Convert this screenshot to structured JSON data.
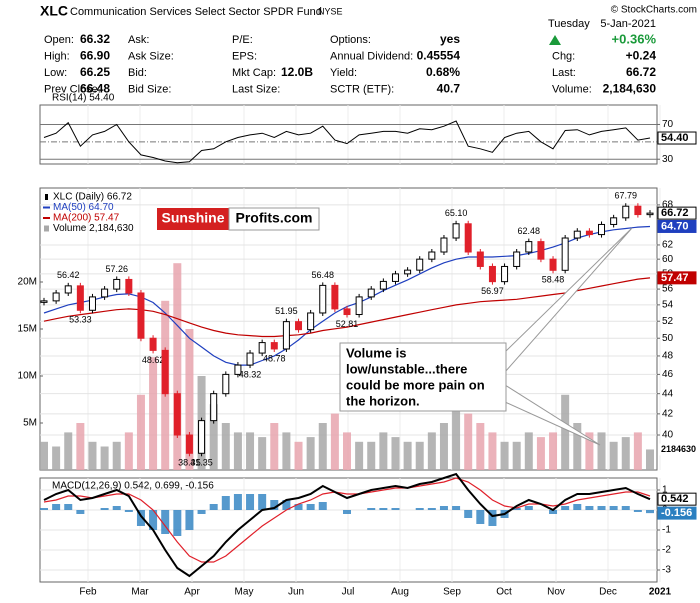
{
  "header": {
    "symbol": "XLC",
    "name": "Communication Services Select Sector SPDR Fund",
    "exchange": "NYSE",
    "credit": "© StockCharts.com",
    "day": "Tuesday",
    "date": "5-Jan-2021",
    "change_pct": "+0.36%",
    "rows": [
      [
        {
          "label": "Open:",
          "value": "66.32"
        },
        {
          "label": "Ask:"
        },
        {
          "label": "P/E:"
        },
        {
          "label": "Options:",
          "value": "yes"
        }
      ],
      [
        {
          "label": "High:",
          "value": "66.90"
        },
        {
          "label": "Ask Size:"
        },
        {
          "label": "EPS:"
        },
        {
          "label": "Annual Dividend:",
          "value": "0.45554"
        }
      ],
      [
        {
          "label": "Low:",
          "value": "66.25"
        },
        {
          "label": "Bid:"
        },
        {
          "label": "Mkt Cap:",
          "value": "12.0B"
        },
        {
          "label": "Yield:",
          "value": "0.68%"
        }
      ],
      [
        {
          "label": "Prev Close:",
          "value": "66.48"
        },
        {
          "label": "Bid Size:"
        },
        {
          "label": "Last Size:"
        },
        {
          "label": "SCTR (ETF):",
          "value": "40.7"
        }
      ]
    ],
    "side": [
      {
        "label": "Chg:",
        "value": "+0.24"
      },
      {
        "label": "Last:",
        "value": "66.72"
      },
      {
        "label": "Volume:",
        "value": "2,184,630"
      }
    ]
  },
  "watermark": [
    "Sunshine",
    "Profits.com"
  ],
  "annotation": [
    "Volume is",
    "low/unstable...there",
    "could be more pain on",
    "the horizon."
  ],
  "chart_data": [
    {
      "type": "line",
      "title": "RSI(14) 54.40",
      "color": "#000000",
      "values": [
        55,
        60,
        72,
        45,
        58,
        62,
        70,
        50,
        35,
        32,
        28,
        26,
        27,
        40,
        42,
        50,
        55,
        58,
        60,
        55,
        62,
        58,
        60,
        68,
        52,
        48,
        58,
        60,
        62,
        62,
        60,
        65,
        64,
        68,
        74,
        45,
        42,
        38,
        55,
        60,
        62,
        50,
        42,
        63,
        64,
        58,
        62,
        64,
        66,
        52,
        54.4
      ],
      "ylim": [
        24.5,
        92.4
      ],
      "yticks": [
        30,
        50,
        70
      ],
      "tags": [
        {
          "value": 54.4,
          "label": "54.40",
          "color": "#000000"
        }
      ]
    },
    {
      "type": "candlestick",
      "log_scale": true,
      "grid": true,
      "up_color": "#000000",
      "down_color": "#e0202a",
      "volume_up_color": "#a8a8a8",
      "volume_down_color": "#e8a4ae",
      "series": [
        {
          "name": "XLC (Daily) 66.72",
          "color": "#000000",
          "values": [
            54.5,
            55.5,
            56.42,
            53.33,
            55.0,
            56.0,
            57.26,
            55.5,
            50.0,
            48.62,
            44.0,
            40.0,
            38.35,
            41.35,
            44.0,
            46.0,
            47.0,
            48.32,
            49.5,
            48.78,
            51.95,
            51.0,
            53.0,
            56.48,
            53.5,
            52.81,
            55.0,
            56.0,
            57.0,
            58.0,
            58.5,
            60.0,
            61.0,
            63.0,
            65.1,
            61.0,
            59.0,
            56.97,
            59.0,
            61.0,
            62.48,
            60.0,
            58.48,
            63.0,
            64.0,
            63.5,
            65.0,
            66.0,
            67.79,
            66.5,
            66.72
          ],
          "value_labels": [
            null,
            null,
            "56.42",
            "53.33",
            null,
            null,
            "57.26",
            null,
            null,
            "48.62",
            null,
            null,
            "38.35",
            "41.35",
            null,
            null,
            null,
            "48.32",
            null,
            "48.78",
            "51.95",
            null,
            null,
            "56.48",
            null,
            "52.81",
            null,
            null,
            null,
            null,
            null,
            null,
            null,
            null,
            "65.10",
            null,
            null,
            "56.97",
            null,
            null,
            "62.48",
            null,
            "58.48",
            null,
            null,
            null,
            null,
            null,
            "67.79",
            null,
            null
          ]
        },
        {
          "name": "MA(50) 64.70",
          "color": "#1f3fbf",
          "values": [
            53,
            53.5,
            54,
            54.3,
            54.6,
            55,
            55.3,
            55.4,
            55,
            54.3,
            53,
            51.5,
            50,
            49,
            48,
            47.3,
            47,
            47,
            47.5,
            48,
            48.8,
            49.8,
            51,
            52,
            53,
            53.8,
            54.3,
            55,
            55.8,
            56.5,
            57.2,
            58,
            58.8,
            59.5,
            60,
            60.3,
            60.3,
            60.3,
            60.4,
            60.5,
            60.8,
            61.2,
            61.7,
            62.3,
            63,
            63.5,
            63.9,
            64.2,
            64.4,
            64.6,
            64.7
          ]
        },
        {
          "name": "MA(200) 57.47",
          "color": "#c00000",
          "values": [
            52,
            52.3,
            52.6,
            52.8,
            53,
            53.2,
            53.4,
            53.5,
            53.4,
            53.2,
            52.8,
            52.3,
            51.8,
            51.3,
            50.9,
            50.6,
            50.4,
            50.3,
            50.2,
            50.2,
            50.3,
            50.4,
            50.6,
            50.9,
            51.1,
            51.3,
            51.6,
            51.9,
            52.2,
            52.5,
            52.8,
            53.1,
            53.4,
            53.7,
            54,
            54.2,
            54.4,
            54.5,
            54.6,
            54.7,
            54.9,
            55.1,
            55.3,
            55.5,
            55.8,
            56.1,
            56.4,
            56.7,
            57,
            57.3,
            57.47
          ]
        },
        {
          "name": "Volume 2,184,630",
          "color": "#a8a8a8",
          "axis": "y2",
          "values": [
            3000000,
            2500000,
            4000000,
            5000000,
            3000000,
            2500000,
            3000000,
            4000000,
            8000000,
            12000000,
            18000000,
            22000000,
            15000000,
            10000000,
            7000000,
            5000000,
            4000000,
            4000000,
            3500000,
            5000000,
            4000000,
            3000000,
            3500000,
            5000000,
            6000000,
            4000000,
            3000000,
            3000000,
            4000000,
            3500000,
            3000000,
            3000000,
            4000000,
            5000000,
            7000000,
            6000000,
            5000000,
            4000000,
            3000000,
            3000000,
            4000000,
            3500000,
            4000000,
            8000000,
            5000000,
            4000000,
            4000000,
            3000000,
            3500000,
            4000000,
            2184630
          ]
        }
      ],
      "ylim": [
        36.9,
        70.7
      ],
      "yticks": [
        40,
        42,
        44,
        46,
        48,
        50,
        52,
        54,
        56,
        58,
        60,
        62,
        68
      ],
      "y2lim": [
        0,
        30000000
      ],
      "y2ticks": [
        {
          "value": 5000000,
          "label": "5M"
        },
        {
          "value": 10000000,
          "label": "10M"
        },
        {
          "value": 15000000,
          "label": "15M"
        },
        {
          "value": 20000000,
          "label": "20M"
        }
      ],
      "tags": [
        {
          "value": 66.72,
          "color": "#000000"
        },
        {
          "value": 64.7,
          "label": "64.70",
          "color": "#1f3fbf"
        },
        {
          "value": 57.47,
          "color": "#c00000"
        }
      ],
      "y2tags": [
        {
          "value": 2184630,
          "color": "#000000"
        }
      ]
    },
    {
      "type": "macd",
      "title": "MACD(12,26,9) 0.542, 0.699, -0.156",
      "series": [
        {
          "name": "MACD",
          "color": "#000000",
          "values": [
            0.5,
            0.8,
            1.0,
            0.5,
            0.6,
            0.8,
            1.0,
            0.7,
            -0.3,
            -1.0,
            -2.0,
            -2.9,
            -3.3,
            -2.8,
            -2.3,
            -1.6,
            -1.0,
            -0.5,
            0.0,
            0.1,
            0.5,
            0.6,
            0.8,
            1.2,
            0.9,
            0.6,
            0.8,
            1.0,
            1.1,
            1.2,
            1.1,
            1.3,
            1.4,
            1.6,
            1.8,
            1.0,
            0.3,
            -0.3,
            -0.2,
            0.2,
            0.5,
            0.3,
            0.0,
            0.5,
            0.8,
            0.8,
            0.9,
            1.0,
            1.1,
            0.8,
            0.542
          ]
        },
        {
          "name": "Signal",
          "color": "#e0202a",
          "values": [
            0.4,
            0.5,
            0.7,
            0.7,
            0.6,
            0.7,
            0.8,
            0.8,
            0.5,
            0.0,
            -0.8,
            -1.6,
            -2.3,
            -2.6,
            -2.6,
            -2.3,
            -1.8,
            -1.3,
            -0.8,
            -0.4,
            0.0,
            0.3,
            0.5,
            0.8,
            0.9,
            0.8,
            0.8,
            0.9,
            1.0,
            1.1,
            1.1,
            1.2,
            1.3,
            1.4,
            1.6,
            1.4,
            1.0,
            0.5,
            0.2,
            0.1,
            0.3,
            0.3,
            0.2,
            0.3,
            0.5,
            0.6,
            0.7,
            0.8,
            0.9,
            0.9,
            0.699
          ]
        },
        {
          "name": "Histogram",
          "color": "#2a7fc0",
          "values": [
            0.1,
            0.3,
            0.3,
            -0.2,
            0.0,
            0.1,
            0.2,
            -0.1,
            -0.8,
            -1.0,
            -1.2,
            -1.3,
            -1.0,
            -0.2,
            0.3,
            0.7,
            0.8,
            0.8,
            0.8,
            0.5,
            0.5,
            0.3,
            0.3,
            0.4,
            0.0,
            -0.2,
            0.0,
            0.1,
            0.1,
            0.1,
            0.0,
            0.1,
            0.1,
            0.2,
            0.2,
            -0.4,
            -0.7,
            -0.8,
            -0.4,
            0.1,
            0.2,
            0.0,
            -0.2,
            0.2,
            0.3,
            0.2,
            0.2,
            0.2,
            0.2,
            -0.1,
            -0.156
          ]
        }
      ],
      "ylim": [
        -3.6,
        1.6
      ],
      "yticks": [
        1,
        0,
        -1,
        -2,
        -3
      ],
      "tags": [
        {
          "value": 0.542,
          "color": "#000000"
        },
        {
          "value": -0.156,
          "color": "#2a7fc0"
        }
      ],
      "xtick_labels": [
        "Feb",
        "Mar",
        "Apr",
        "May",
        "Jun",
        "Jul",
        "Aug",
        "Sep",
        "Oct",
        "Nov",
        "Dec",
        "2021"
      ]
    }
  ]
}
